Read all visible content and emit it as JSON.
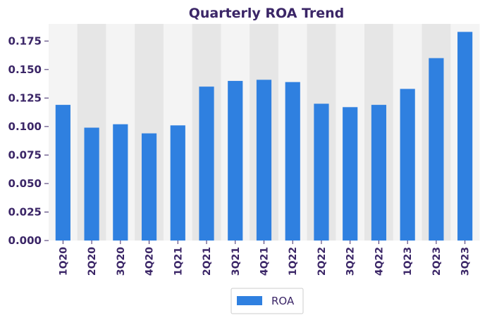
{
  "chart_data": {
    "type": "bar",
    "title": "Quarterly ROA Trend",
    "xlabel": "",
    "ylabel": "",
    "categories": [
      "1Q20",
      "2Q20",
      "3Q20",
      "4Q20",
      "1Q21",
      "2Q21",
      "3Q21",
      "4Q21",
      "1Q22",
      "2Q22",
      "3Q22",
      "4Q22",
      "1Q23",
      "2Q23",
      "3Q23"
    ],
    "series": [
      {
        "name": "ROA",
        "color": "#2f80e0",
        "values": [
          0.119,
          0.099,
          0.102,
          0.094,
          0.101,
          0.135,
          0.14,
          0.141,
          0.139,
          0.12,
          0.117,
          0.119,
          0.133,
          0.16,
          0.183
        ]
      }
    ],
    "ylim": [
      0,
      0.19
    ],
    "yticks": [
      "0.000",
      "0.025",
      "0.050",
      "0.075",
      "0.100",
      "0.125",
      "0.150",
      "0.175"
    ],
    "ytick_values": [
      0,
      0.025,
      0.05,
      0.075,
      0.1,
      0.125,
      0.15,
      0.175
    ],
    "grid": false,
    "background_bands": [
      "#f4f4f4",
      "#e6e6e6"
    ],
    "legend": {
      "position": "bottom-center",
      "label": "ROA"
    }
  }
}
